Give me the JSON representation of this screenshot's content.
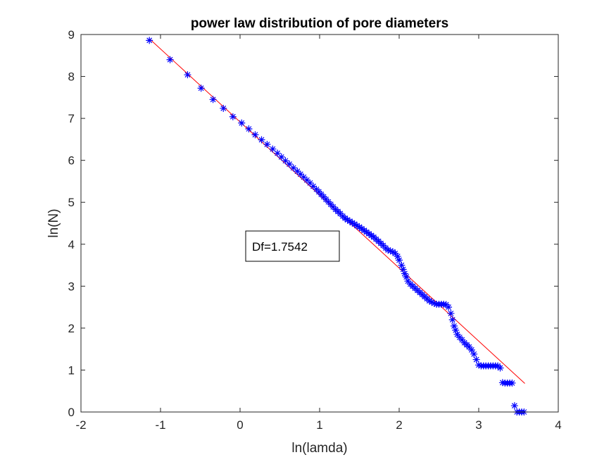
{
  "chart_data": {
    "type": "scatter",
    "title": "power law distribution of pore diameters",
    "xlabel": "ln(lamda)",
    "ylabel": "ln(N)",
    "xlim": [
      -2,
      4
    ],
    "ylim": [
      0,
      9
    ],
    "xticks": [
      "-2",
      "-1",
      "0",
      "1",
      "2",
      "3",
      "4"
    ],
    "yticks": [
      "0",
      "1",
      "2",
      "3",
      "4",
      "5",
      "6",
      "7",
      "8",
      "9"
    ],
    "grid": false,
    "annotation": "Df=1.7542",
    "series": [
      {
        "marker": "asterisk",
        "color": "#0000ff",
        "points": [
          [
            -1.14,
            8.86
          ],
          [
            -0.88,
            8.4
          ],
          [
            -0.66,
            8.04
          ],
          [
            -0.49,
            7.72
          ],
          [
            -0.34,
            7.45
          ],
          [
            -0.21,
            7.24
          ],
          [
            -0.09,
            7.04
          ],
          [
            0.02,
            6.89
          ],
          [
            0.11,
            6.75
          ],
          [
            0.19,
            6.61
          ],
          [
            0.27,
            6.49
          ],
          [
            0.34,
            6.38
          ],
          [
            0.41,
            6.27
          ],
          [
            0.47,
            6.17
          ],
          [
            0.52,
            6.08
          ],
          [
            0.57,
            5.99
          ],
          [
            0.62,
            5.91
          ],
          [
            0.67,
            5.82
          ],
          [
            0.72,
            5.74
          ],
          [
            0.76,
            5.67
          ],
          [
            0.8,
            5.6
          ],
          [
            0.84,
            5.53
          ],
          [
            0.88,
            5.46
          ],
          [
            0.92,
            5.38
          ],
          [
            0.96,
            5.31
          ],
          [
            0.99,
            5.25
          ],
          [
            1.02,
            5.19
          ],
          [
            1.05,
            5.13
          ],
          [
            1.08,
            5.07
          ],
          [
            1.11,
            5.01
          ],
          [
            1.14,
            4.95
          ],
          [
            1.17,
            4.89
          ],
          [
            1.2,
            4.83
          ],
          [
            1.23,
            4.78
          ],
          [
            1.26,
            4.73
          ],
          [
            1.29,
            4.67
          ],
          [
            1.32,
            4.62
          ],
          [
            1.35,
            4.58
          ],
          [
            1.38,
            4.55
          ],
          [
            1.41,
            4.51
          ],
          [
            1.44,
            4.48
          ],
          [
            1.47,
            4.44
          ],
          [
            1.5,
            4.41
          ],
          [
            1.53,
            4.37
          ],
          [
            1.56,
            4.33
          ],
          [
            1.59,
            4.29
          ],
          [
            1.62,
            4.25
          ],
          [
            1.65,
            4.21
          ],
          [
            1.68,
            4.17
          ],
          [
            1.71,
            4.12
          ],
          [
            1.74,
            4.07
          ],
          [
            1.77,
            4.02
          ],
          [
            1.8,
            3.97
          ],
          [
            1.83,
            3.91
          ],
          [
            1.86,
            3.86
          ],
          [
            1.89,
            3.84
          ],
          [
            1.92,
            3.82
          ],
          [
            1.95,
            3.78
          ],
          [
            1.98,
            3.71
          ],
          [
            2.0,
            3.62
          ],
          [
            2.03,
            3.5
          ],
          [
            2.05,
            3.4
          ],
          [
            2.07,
            3.3
          ],
          [
            2.09,
            3.22
          ],
          [
            2.11,
            3.12
          ],
          [
            2.14,
            3.05
          ],
          [
            2.17,
            3.0
          ],
          [
            2.2,
            2.95
          ],
          [
            2.23,
            2.9
          ],
          [
            2.26,
            2.85
          ],
          [
            2.29,
            2.8
          ],
          [
            2.32,
            2.75
          ],
          [
            2.35,
            2.7
          ],
          [
            2.38,
            2.65
          ],
          [
            2.41,
            2.62
          ],
          [
            2.44,
            2.59
          ],
          [
            2.47,
            2.57
          ],
          [
            2.5,
            2.57
          ],
          [
            2.53,
            2.57
          ],
          [
            2.56,
            2.57
          ],
          [
            2.59,
            2.56
          ],
          [
            2.62,
            2.5
          ],
          [
            2.65,
            2.35
          ],
          [
            2.67,
            2.2
          ],
          [
            2.69,
            2.05
          ],
          [
            2.71,
            1.95
          ],
          [
            2.73,
            1.85
          ],
          [
            2.76,
            1.78
          ],
          [
            2.79,
            1.72
          ],
          [
            2.82,
            1.65
          ],
          [
            2.85,
            1.6
          ],
          [
            2.88,
            1.55
          ],
          [
            2.91,
            1.48
          ],
          [
            2.94,
            1.38
          ],
          [
            2.97,
            1.25
          ],
          [
            3.0,
            1.12
          ],
          [
            3.03,
            1.1
          ],
          [
            3.06,
            1.1
          ],
          [
            3.09,
            1.1
          ],
          [
            3.12,
            1.1
          ],
          [
            3.15,
            1.1
          ],
          [
            3.18,
            1.1
          ],
          [
            3.21,
            1.1
          ],
          [
            3.24,
            1.1
          ],
          [
            3.27,
            1.05
          ],
          [
            3.3,
            0.7
          ],
          [
            3.33,
            0.69
          ],
          [
            3.36,
            0.69
          ],
          [
            3.39,
            0.69
          ],
          [
            3.42,
            0.69
          ],
          [
            3.45,
            0.15
          ],
          [
            3.48,
            0.0
          ],
          [
            3.51,
            0.0
          ],
          [
            3.54,
            0.0
          ],
          [
            3.57,
            0.0
          ]
        ]
      },
      {
        "type": "line",
        "color": "#ff0000",
        "points": [
          [
            -1.14,
            8.9
          ],
          [
            3.58,
            0.68
          ]
        ]
      }
    ]
  }
}
